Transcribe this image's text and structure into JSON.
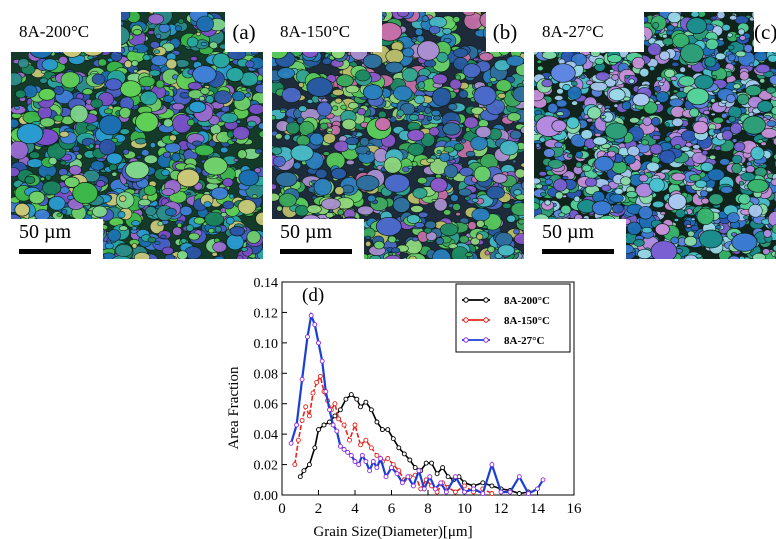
{
  "panels": [
    {
      "label": "8A-200°C",
      "letter": "(a)",
      "scale_label": "50 µm"
    },
    {
      "label": "8A-150°C",
      "letter": "(b)",
      "scale_label": "50 µm"
    },
    {
      "label": "8A-27°C",
      "letter": "(c)",
      "scale_label": "50 µm"
    }
  ],
  "chart_data": {
    "type": "line",
    "panel_label": "(d)",
    "xlabel": "Grain Size(Diameter)[μm]",
    "ylabel": "Area Fraction",
    "xlim": [
      0,
      16
    ],
    "ylim": [
      0,
      0.14
    ],
    "xticks": [
      "0",
      "2",
      "4",
      "6",
      "8",
      "10",
      "12",
      "14",
      "16"
    ],
    "yticks": [
      "0.00",
      "0.02",
      "0.04",
      "0.06",
      "0.08",
      "0.10",
      "0.12",
      "0.14"
    ],
    "legend_position": "top-right",
    "series": [
      {
        "name": "8A-200°C",
        "color": "#000000",
        "points": [
          [
            1.0,
            0.012
          ],
          [
            1.2,
            0.016
          ],
          [
            1.5,
            0.02
          ],
          [
            1.8,
            0.031
          ],
          [
            2.0,
            0.043
          ],
          [
            2.3,
            0.046
          ],
          [
            2.6,
            0.048
          ],
          [
            2.9,
            0.052
          ],
          [
            3.2,
            0.056
          ],
          [
            3.5,
            0.063
          ],
          [
            3.8,
            0.066
          ],
          [
            4.1,
            0.063
          ],
          [
            4.3,
            0.058
          ],
          [
            4.6,
            0.061
          ],
          [
            4.9,
            0.056
          ],
          [
            5.2,
            0.048
          ],
          [
            5.5,
            0.043
          ],
          [
            5.8,
            0.043
          ],
          [
            6.1,
            0.037
          ],
          [
            6.4,
            0.031
          ],
          [
            6.7,
            0.027
          ],
          [
            7.0,
            0.023
          ],
          [
            7.3,
            0.018
          ],
          [
            7.6,
            0.016
          ],
          [
            7.9,
            0.021
          ],
          [
            8.2,
            0.021
          ],
          [
            8.5,
            0.014
          ],
          [
            8.8,
            0.018
          ],
          [
            9.1,
            0.012
          ],
          [
            9.4,
            0.01
          ],
          [
            9.7,
            0.012
          ],
          [
            10.0,
            0.008
          ],
          [
            10.5,
            0.006
          ],
          [
            11.0,
            0.008
          ],
          [
            11.5,
            0.006
          ],
          [
            12.0,
            0.004
          ],
          [
            12.5,
            0.003
          ],
          [
            13.0,
            0.001
          ],
          [
            13.5,
            0.002
          ]
        ]
      },
      {
        "name": "8A-150°C",
        "color": "#e8241c",
        "points": [
          [
            0.7,
            0.02
          ],
          [
            0.9,
            0.036
          ],
          [
            1.1,
            0.049
          ],
          [
            1.3,
            0.058
          ],
          [
            1.5,
            0.052
          ],
          [
            1.7,
            0.067
          ],
          [
            1.9,
            0.074
          ],
          [
            2.1,
            0.078
          ],
          [
            2.3,
            0.068
          ],
          [
            2.5,
            0.062
          ],
          [
            2.7,
            0.056
          ],
          [
            2.9,
            0.06
          ],
          [
            3.1,
            0.05
          ],
          [
            3.4,
            0.046
          ],
          [
            3.7,
            0.036
          ],
          [
            4.0,
            0.046
          ],
          [
            4.3,
            0.033
          ],
          [
            4.6,
            0.036
          ],
          [
            4.9,
            0.031
          ],
          [
            5.2,
            0.026
          ],
          [
            5.5,
            0.022
          ],
          [
            5.8,
            0.024
          ],
          [
            6.1,
            0.02
          ],
          [
            6.4,
            0.016
          ],
          [
            6.7,
            0.01
          ],
          [
            7.0,
            0.012
          ],
          [
            7.3,
            0.013
          ],
          [
            7.6,
            0.004
          ],
          [
            7.9,
            0.01
          ],
          [
            8.2,
            0.006
          ],
          [
            8.5,
            0.002
          ],
          [
            8.8,
            0.008
          ],
          [
            9.1,
            0.005
          ],
          [
            9.5,
            0.002
          ],
          [
            10.0,
            0.006
          ],
          [
            10.5,
            0.002
          ],
          [
            11.0,
            0.004
          ],
          [
            11.5,
            0.001
          ]
        ]
      },
      {
        "name": "8A-27°C",
        "color": "#1a3fd6",
        "marker_color": "#8a2be2",
        "points": [
          [
            0.5,
            0.034
          ],
          [
            0.8,
            0.046
          ],
          [
            1.1,
            0.076
          ],
          [
            1.4,
            0.104
          ],
          [
            1.6,
            0.118
          ],
          [
            1.8,
            0.112
          ],
          [
            2.0,
            0.1
          ],
          [
            2.2,
            0.088
          ],
          [
            2.4,
            0.068
          ],
          [
            2.6,
            0.056
          ],
          [
            2.8,
            0.046
          ],
          [
            3.0,
            0.042
          ],
          [
            3.2,
            0.032
          ],
          [
            3.4,
            0.03
          ],
          [
            3.6,
            0.028
          ],
          [
            3.8,
            0.026
          ],
          [
            4.0,
            0.022
          ],
          [
            4.2,
            0.02
          ],
          [
            4.4,
            0.026
          ],
          [
            4.6,
            0.022
          ],
          [
            4.8,
            0.016
          ],
          [
            5.0,
            0.022
          ],
          [
            5.2,
            0.018
          ],
          [
            5.4,
            0.024
          ],
          [
            5.7,
            0.012
          ],
          [
            6.0,
            0.018
          ],
          [
            6.3,
            0.014
          ],
          [
            6.6,
            0.008
          ],
          [
            6.9,
            0.012
          ],
          [
            7.2,
            0.006
          ],
          [
            7.5,
            0.016
          ],
          [
            7.8,
            0.004
          ],
          [
            8.1,
            0.012
          ],
          [
            8.4,
            0.004
          ],
          [
            8.7,
            0.008
          ],
          [
            9.0,
            0.002
          ],
          [
            9.5,
            0.012
          ],
          [
            10.0,
            0.002
          ],
          [
            10.5,
            0.004
          ],
          [
            11.0,
            0.001
          ],
          [
            11.5,
            0.02
          ],
          [
            12.0,
            0.002
          ],
          [
            12.5,
            0.002
          ],
          [
            13.0,
            0.012
          ],
          [
            13.5,
            0.001
          ],
          [
            14.0,
            0.004
          ],
          [
            14.3,
            0.01
          ]
        ]
      }
    ]
  }
}
